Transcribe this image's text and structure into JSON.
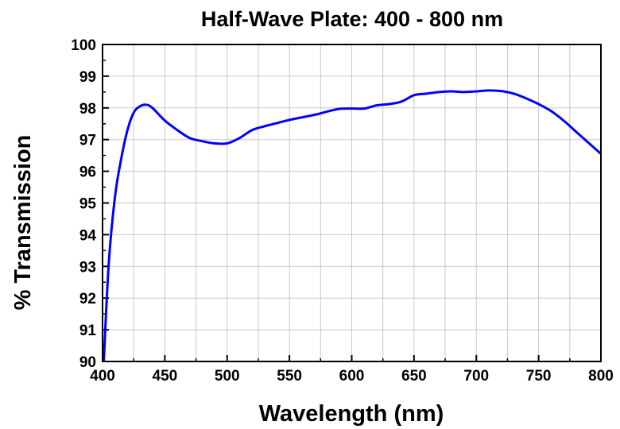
{
  "chart_data": {
    "type": "line",
    "title": "Half-Wave Plate: 400 - 800 nm",
    "xlabel": "Wavelength (nm)",
    "ylabel": "% Transmission",
    "xlim": [
      400,
      800
    ],
    "ylim": [
      90,
      100
    ],
    "xticks": [
      "400",
      "450",
      "500",
      "550",
      "600",
      "650",
      "700",
      "750",
      "800"
    ],
    "yticks": [
      "90",
      "91",
      "92",
      "93",
      "94",
      "95",
      "96",
      "97",
      "98",
      "99",
      "100"
    ],
    "grid": true,
    "line_color": "#0000ff",
    "series": [
      {
        "x": [
          401,
          405,
          410,
          415,
          420,
          425,
          430,
          435,
          440,
          450,
          460,
          470,
          480,
          490,
          500,
          510,
          520,
          530,
          540,
          550,
          560,
          570,
          580,
          590,
          600,
          610,
          620,
          630,
          640,
          650,
          660,
          670,
          680,
          690,
          700,
          710,
          720,
          730,
          740,
          750,
          760,
          770,
          780,
          790,
          800
        ],
        "values": [
          90.0,
          93.1,
          95.2,
          96.4,
          97.3,
          97.85,
          98.05,
          98.1,
          98.0,
          97.6,
          97.3,
          97.05,
          96.95,
          96.88,
          96.88,
          97.05,
          97.3,
          97.42,
          97.52,
          97.62,
          97.7,
          97.78,
          97.88,
          97.97,
          97.98,
          97.98,
          98.08,
          98.12,
          98.2,
          98.4,
          98.45,
          98.5,
          98.52,
          98.5,
          98.52,
          98.55,
          98.53,
          98.45,
          98.3,
          98.12,
          97.9,
          97.6,
          97.25,
          96.9,
          96.55
        ]
      }
    ]
  }
}
